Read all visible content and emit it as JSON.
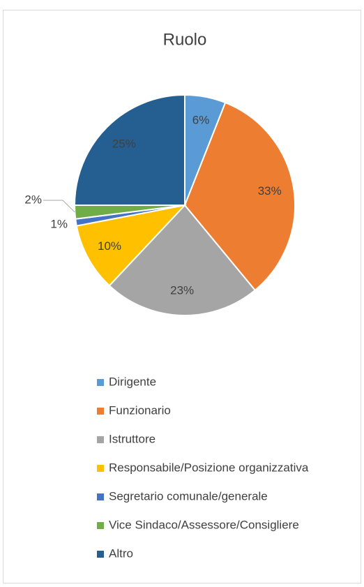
{
  "chart_data": {
    "type": "pie",
    "title": "Ruolo",
    "categories": [
      "Dirigente",
      "Funzionario",
      "Istruttore",
      "Responsabile/Posizione organizzativa",
      "Segretario comunale/generale",
      "Vice Sindaco/Assessore/Consigliere",
      "Altro"
    ],
    "values": [
      6,
      33,
      23,
      10,
      1,
      2,
      25
    ],
    "value_labels": [
      "6%",
      "33%",
      "23%",
      "10%",
      "1%",
      "2%",
      "25%"
    ],
    "colors": [
      "#5b9bd5",
      "#ed7d31",
      "#a5a5a5",
      "#ffc000",
      "#4472c4",
      "#70ad47",
      "#255e91"
    ],
    "legend": "bottom"
  }
}
